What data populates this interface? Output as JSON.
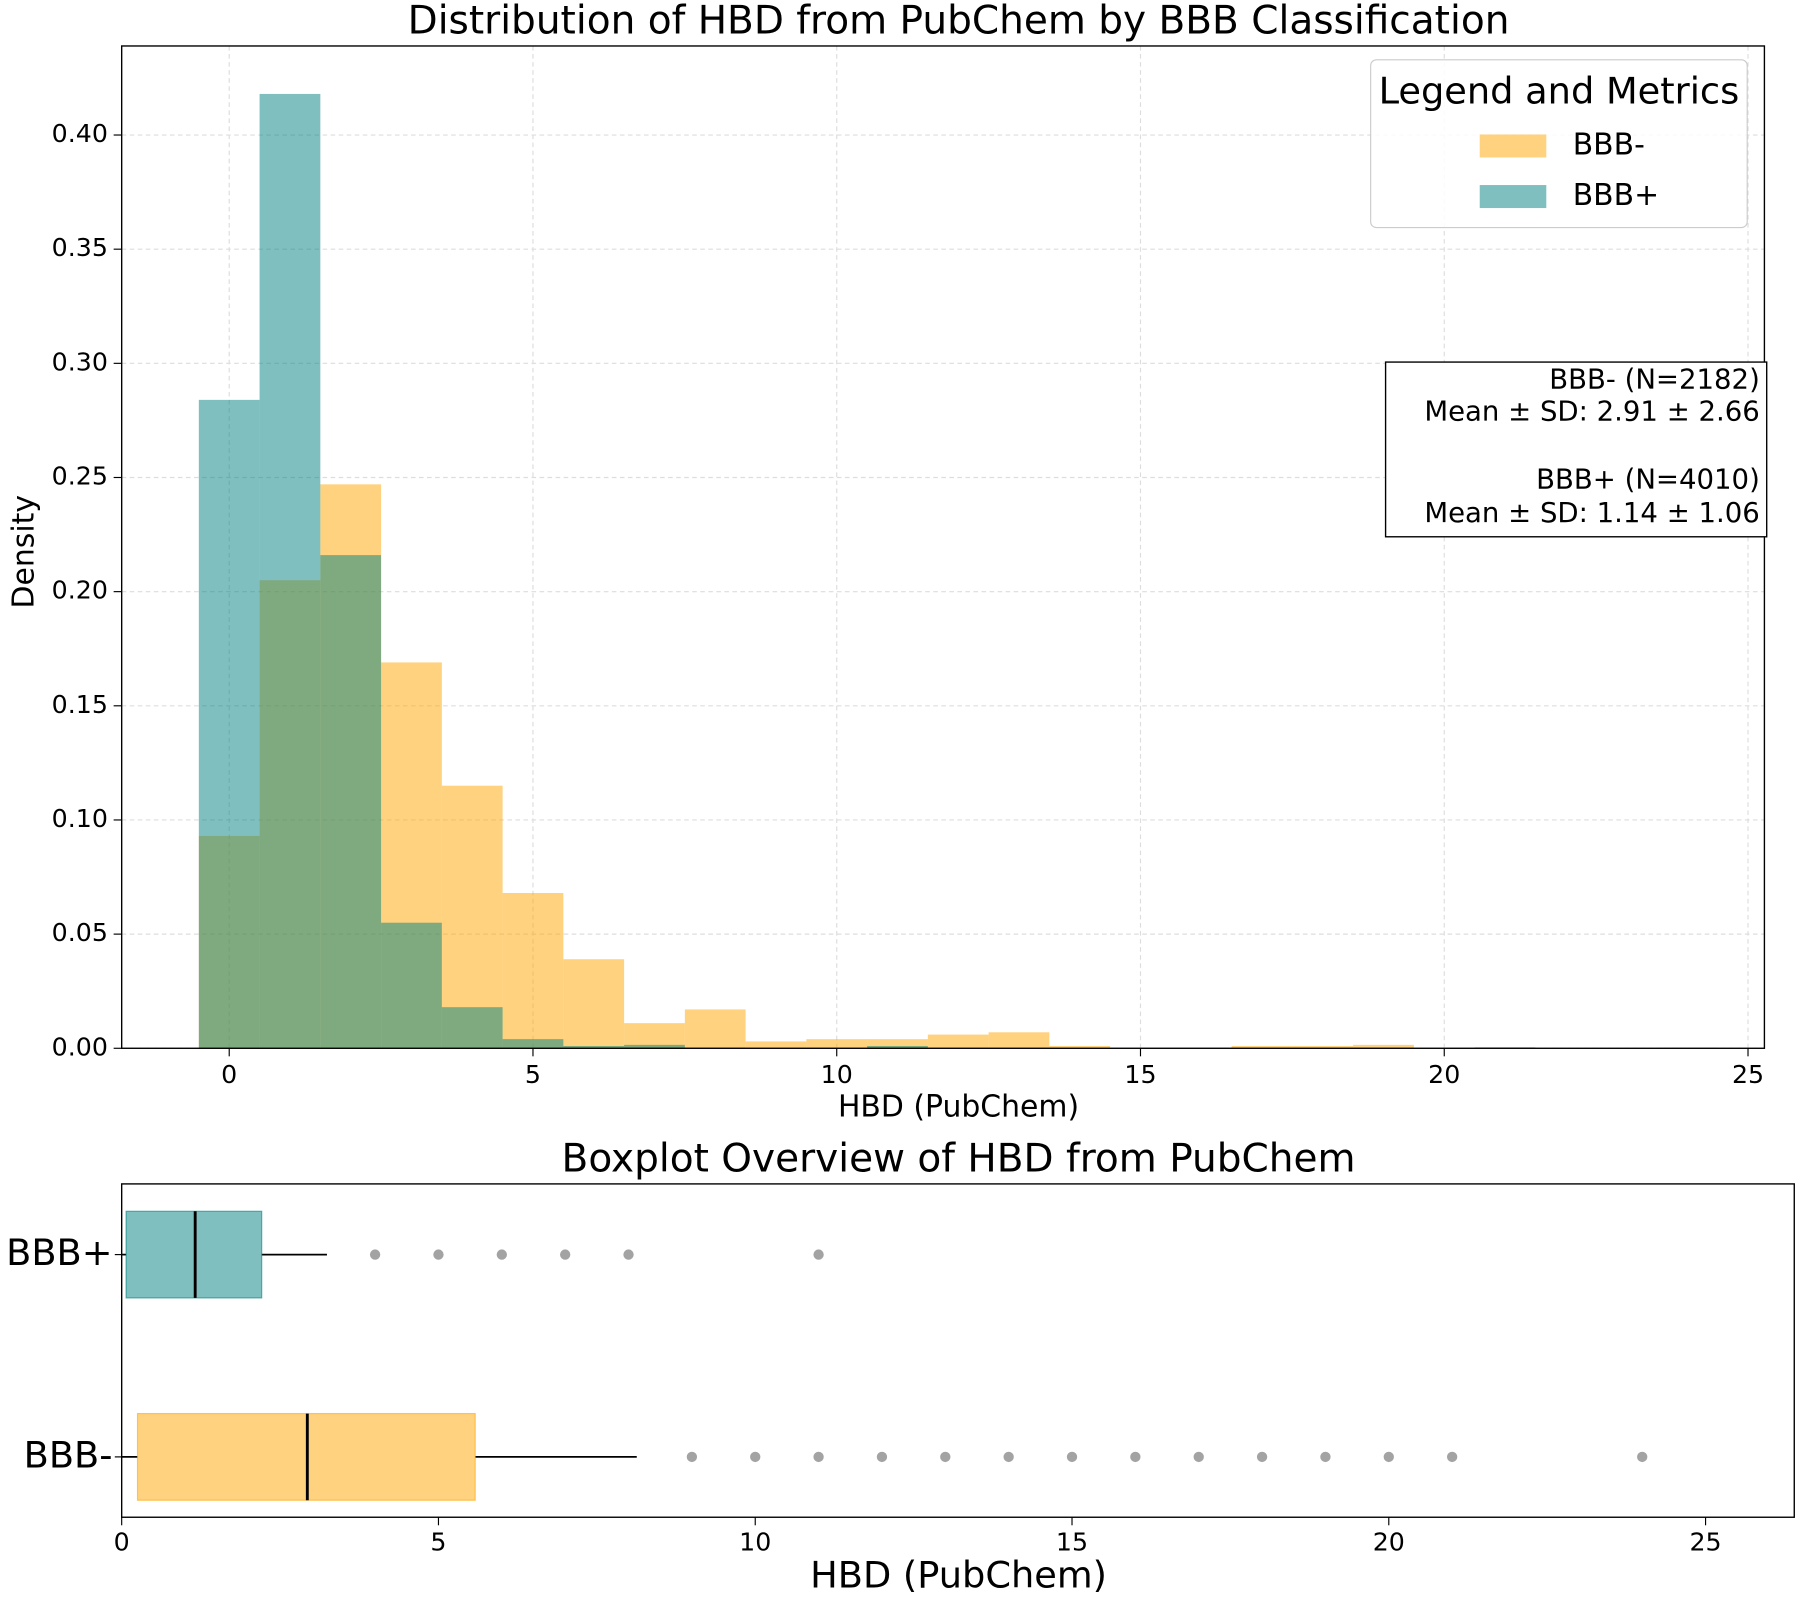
{
  "chart_data": [
    {
      "type": "histogram",
      "title": "Distribution of HBD from PubChem by BBB Classification",
      "xlabel": "HBD (PubChem)",
      "ylabel": "Density",
      "bins": [
        -0.5,
        0.5,
        1.5,
        2.5,
        3.5,
        4.5,
        5.5,
        6.5,
        7.5,
        8.5,
        9.5,
        10.5,
        11.5,
        12.5,
        13.5,
        14.5,
        15.5,
        16.5,
        17.5,
        18.5,
        19.5,
        20.5,
        21.5,
        22.5,
        23.5,
        24.5
      ],
      "series": [
        {
          "name": "BBB-",
          "color": "#FFA500",
          "values": [
            0.093,
            0.205,
            0.247,
            0.169,
            0.115,
            0.068,
            0.039,
            0.011,
            0.017,
            0.003,
            0.004,
            0.004,
            0.006,
            0.007,
            0.001,
            0.0003,
            0.0003,
            0.001,
            0.001,
            0.0015,
            0.0003,
            0.0005,
            0,
            0,
            0.0003
          ]
        },
        {
          "name": "BBB+",
          "color": "#008080",
          "values": [
            0.284,
            0.418,
            0.216,
            0.055,
            0.018,
            0.004,
            0.001,
            0.0015,
            0.0003,
            0,
            0,
            0.001,
            0,
            0,
            0,
            0,
            0,
            0,
            0,
            0,
            0,
            0,
            0,
            0,
            0
          ]
        }
      ],
      "opacity": 0.5,
      "xlim": [
        -1.77,
        25.27
      ],
      "ylim": [
        0,
        0.439
      ],
      "xticks": [
        0,
        5,
        10,
        15,
        20,
        25
      ],
      "yticks": [
        {
          "value": 0,
          "label": "0.00"
        },
        {
          "value": 0.05,
          "label": "0.05"
        },
        {
          "value": 0.1,
          "label": "0.10"
        },
        {
          "value": 0.15,
          "label": "0.15"
        },
        {
          "value": 0.2,
          "label": "0.20"
        },
        {
          "value": 0.25,
          "label": "0.25"
        },
        {
          "value": 0.3,
          "label": "0.30"
        },
        {
          "value": 0.35,
          "label": "0.35"
        },
        {
          "value": 0.4,
          "label": "0.40"
        }
      ],
      "grid": true,
      "legend_title": "Legend and Metrics",
      "legend": "upper right",
      "annotations": [
        "BBB- (N=2182)",
        "Mean ± SD: 2.91 ± 2.66",
        "BBB+ (N=4010)",
        "Mean ± SD: 1.14 ± 1.06"
      ]
    },
    {
      "type": "box",
      "orientation": "horizontal",
      "title": "Boxplot Overview of HBD from PubChem",
      "xlabel": "HBD (PubChem)",
      "categories": [
        "BBB+",
        "BBB-"
      ],
      "boxes": [
        {
          "color": "#008080",
          "whislo": 0,
          "q1": 0.07,
          "median": 1.16,
          "q3": 2.21,
          "whishi": 3.24,
          "fliers": [
            4,
            5,
            6,
            7,
            8,
            11
          ]
        },
        {
          "color": "#FFA500",
          "whislo": 0,
          "q1": 0.25,
          "median": 2.93,
          "q3": 5.58,
          "whishi": 8.13,
          "fliers": [
            9,
            10,
            11,
            12,
            13,
            14,
            15,
            16,
            17,
            18,
            19,
            20,
            21,
            24
          ]
        }
      ],
      "opacity": 0.5,
      "xlim": [
        0,
        26.4
      ],
      "xticks": [
        0,
        5,
        10,
        15,
        20,
        25
      ]
    }
  ]
}
